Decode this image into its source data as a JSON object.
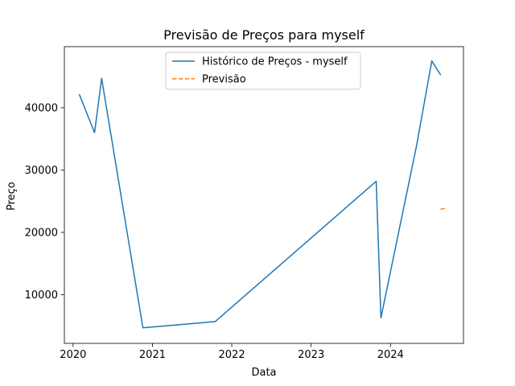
{
  "chart_data": {
    "type": "line",
    "title": "Previsão de Preços para myself",
    "xlabel": "Data",
    "ylabel": "Preço",
    "xlim": [
      2019.89,
      2024.92
    ],
    "ylim": [
      2200,
      49800
    ],
    "x_ticks": [
      2020,
      2021,
      2022,
      2023,
      2024
    ],
    "y_ticks": [
      10000,
      20000,
      30000,
      40000
    ],
    "x_tick_labels": [
      "2020",
      "2021",
      "2022",
      "2023",
      "2024"
    ],
    "y_tick_labels": [
      "10000",
      "20000",
      "30000",
      "40000"
    ],
    "grid": false,
    "legend_position": "upper center",
    "series": [
      {
        "name": "Histórico de Preços - myself",
        "color": "#1f77b4",
        "style": "solid",
        "x": [
          2020.08,
          2020.27,
          2020.36,
          2020.88,
          2021.79,
          2023.82,
          2023.88,
          2024.33,
          2024.52,
          2024.63
        ],
        "y": [
          42100,
          36000,
          44700,
          4700,
          5700,
          28200,
          6300,
          34000,
          47500,
          45300
        ]
      },
      {
        "name": "Previsão",
        "color": "#ff7f0e",
        "style": "dashed",
        "x": [
          2024.63,
          2024.71
        ],
        "y": [
          23700,
          23900
        ]
      }
    ]
  }
}
